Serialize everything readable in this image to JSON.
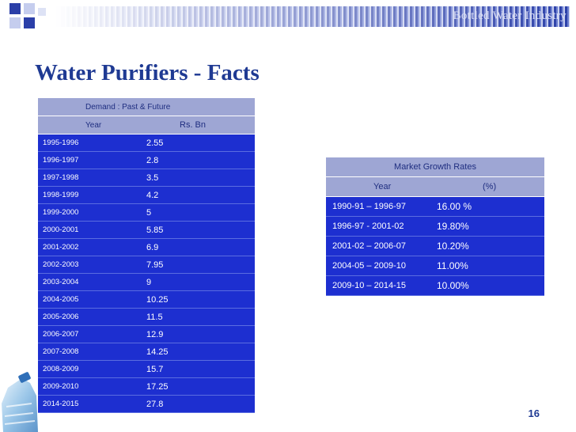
{
  "banner": {
    "text": "Bottled Water Industry"
  },
  "title": "Water Purifiers - Facts",
  "demand_table": {
    "heading": "Demand : Past & Future",
    "col_year": "Year",
    "col_value": "Rs. Bn",
    "rows": [
      {
        "year": "1995-1996",
        "value": "2.55"
      },
      {
        "year": "1996-1997",
        "value": "2.8"
      },
      {
        "year": "1997-1998",
        "value": "3.5"
      },
      {
        "year": "1998-1999",
        "value": "4.2"
      },
      {
        "year": "1999-2000",
        "value": "5"
      },
      {
        "year": "2000-2001",
        "value": "5.85"
      },
      {
        "year": "2001-2002",
        "value": "6.9"
      },
      {
        "year": "2002-2003",
        "value": "7.95"
      },
      {
        "year": "2003-2004",
        "value": "9"
      },
      {
        "year": "2004-2005",
        "value": "10.25"
      },
      {
        "year": "2005-2006",
        "value": "11.5"
      },
      {
        "year": "2006-2007",
        "value": "12.9"
      },
      {
        "year": "2007-2008",
        "value": "14.25"
      },
      {
        "year": "2008-2009",
        "value": "15.7"
      },
      {
        "year": "2009-2010",
        "value": "17.25"
      },
      {
        "year": "2014-2015",
        "value": "27.8"
      }
    ]
  },
  "growth_table": {
    "heading": "Market Growth Rates",
    "col_year": "Year",
    "col_value": "(%)",
    "rows": [
      {
        "year": "1990-91 – 1996-97",
        "value": "16.00 %"
      },
      {
        "year": "1996-97 - 2001-02",
        "value": "19.80%"
      },
      {
        "year": "2001-02 – 2006-07",
        "value": "10.20%"
      },
      {
        "year": "2004-05 – 2009-10",
        "value": "11.00%"
      },
      {
        "year": "2009-10 – 2014-15",
        "value": "10.00%"
      }
    ]
  },
  "page_number": "16",
  "colors": {
    "header_bg": "#9ea6d4",
    "row_bg": "#1d2fd0",
    "title": "#1f3a93"
  }
}
